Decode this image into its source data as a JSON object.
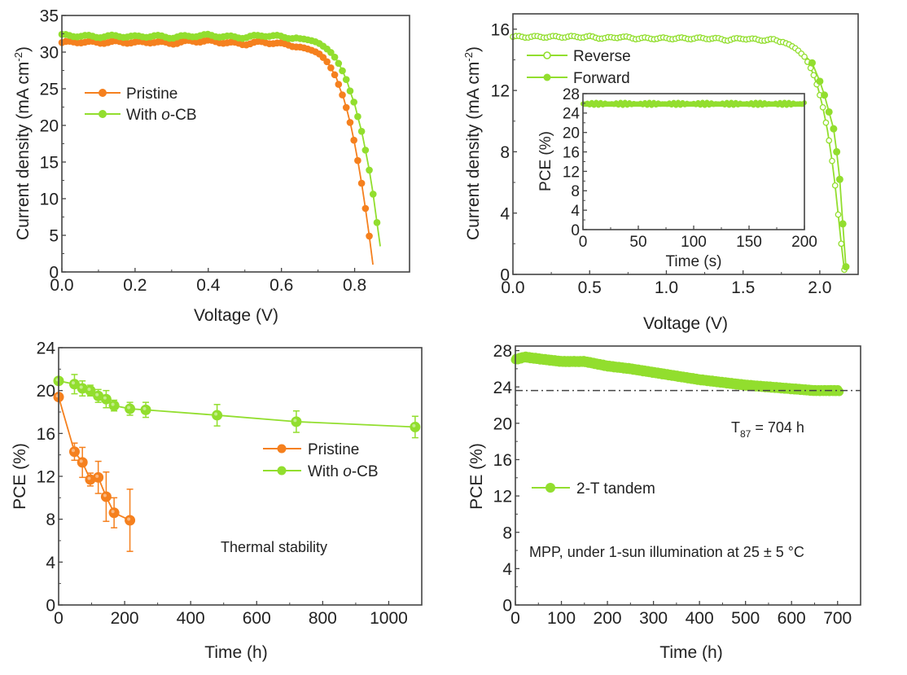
{
  "colors": {
    "pristine": "#f5801e",
    "ocb": "#92de2e",
    "ref_line": "#444444"
  },
  "chart_data": [
    {
      "id": "jv",
      "type": "line",
      "xlabel": "Voltage (V)",
      "ylabel": "Current density (mA cm",
      "ylabel_sup": "-2",
      "ylabel_end": ")",
      "xlim": [
        0,
        0.95
      ],
      "ylim": [
        0,
        35
      ],
      "xticks": [
        0.0,
        0.2,
        0.4,
        0.6,
        0.8
      ],
      "xtick_labels": [
        "0.0",
        "0.2",
        "0.4",
        "0.6",
        "0.8"
      ],
      "yticks": [
        0,
        5,
        10,
        15,
        20,
        25,
        30,
        35
      ],
      "ytick_labels": [
        "0",
        "5",
        "10",
        "15",
        "20",
        "25",
        "30",
        "35"
      ],
      "legend_position": "center-left",
      "series": [
        {
          "name": "Pristine",
          "color_key": "pristine",
          "x": [
            0.0,
            0.05,
            0.1,
            0.15,
            0.2,
            0.25,
            0.3,
            0.35,
            0.4,
            0.45,
            0.5,
            0.55,
            0.6,
            0.62,
            0.64,
            0.66,
            0.68,
            0.7,
            0.72,
            0.73,
            0.74,
            0.75,
            0.76,
            0.77,
            0.78,
            0.79,
            0.8,
            0.81,
            0.82,
            0.83,
            0.84,
            0.85
          ],
          "y": [
            31.3,
            31.4,
            31.3,
            31.4,
            31.3,
            31.4,
            31.2,
            31.5,
            31.5,
            31.3,
            31.1,
            31.4,
            31.1,
            31.0,
            30.8,
            30.6,
            30.3,
            29.9,
            29.0,
            28.3,
            27.4,
            26.5,
            25.0,
            23.7,
            21.9,
            19.9,
            17.5,
            14.8,
            11.8,
            8.5,
            4.9,
            1.0
          ]
        },
        {
          "name": "With o-CB",
          "color_key": "ocb",
          "x": [
            0.0,
            0.05,
            0.1,
            0.15,
            0.2,
            0.25,
            0.3,
            0.35,
            0.4,
            0.45,
            0.5,
            0.55,
            0.6,
            0.62,
            0.64,
            0.66,
            0.68,
            0.7,
            0.72,
            0.73,
            0.74,
            0.75,
            0.76,
            0.77,
            0.78,
            0.79,
            0.8,
            0.81,
            0.82,
            0.83,
            0.84,
            0.85,
            0.86,
            0.87
          ],
          "y": [
            32.3,
            32.2,
            32.1,
            32.2,
            32.1,
            32.2,
            32.0,
            32.2,
            32.3,
            32.1,
            32.0,
            32.3,
            32.1,
            32.0,
            31.9,
            31.8,
            31.6,
            31.3,
            30.6,
            30.2,
            29.7,
            29.0,
            28.1,
            27.1,
            25.9,
            24.3,
            22.9,
            20.9,
            19.0,
            16.5,
            13.9,
            10.8,
            7.1,
            3.5
          ]
        }
      ]
    },
    {
      "id": "tandem-jv",
      "type": "line",
      "xlabel": "Voltage (V)",
      "ylabel": "Current density (mA cm",
      "ylabel_sup": "-2",
      "ylabel_end": ")",
      "xlim": [
        0,
        2.25
      ],
      "ylim": [
        0,
        17
      ],
      "xticks": [
        0.0,
        0.5,
        1.0,
        1.5,
        2.0
      ],
      "xtick_labels": [
        "0.0",
        "0.5",
        "1.0",
        "1.5",
        "2.0"
      ],
      "yticks": [
        0,
        4,
        8,
        12,
        16
      ],
      "ytick_labels": [
        "0",
        "4",
        "8",
        "12",
        "16"
      ],
      "legend_position": "top-left",
      "series": [
        {
          "name": "Reverse",
          "marker": "open",
          "color_key": "ocb",
          "x": [
            0.0,
            0.1,
            0.2,
            0.3,
            0.4,
            0.5,
            0.6,
            0.7,
            0.8,
            0.9,
            1.0,
            1.1,
            1.2,
            1.3,
            1.4,
            1.5,
            1.6,
            1.7,
            1.75,
            1.8,
            1.85,
            1.9,
            1.93,
            1.96,
            1.99,
            2.02,
            2.05,
            2.08,
            2.1,
            2.12,
            2.14,
            2.16
          ],
          "y": [
            15.5,
            15.5,
            15.5,
            15.5,
            15.5,
            15.5,
            15.4,
            15.5,
            15.4,
            15.4,
            15.4,
            15.4,
            15.4,
            15.4,
            15.3,
            15.4,
            15.3,
            15.3,
            15.2,
            15.0,
            14.7,
            14.2,
            13.7,
            13.0,
            12.1,
            10.9,
            9.4,
            7.4,
            5.8,
            3.9,
            2.0,
            0.3
          ]
        },
        {
          "name": "Forward",
          "marker": "filled",
          "color_key": "ocb",
          "x": [
            0.0,
            0.2,
            0.4,
            0.6,
            0.8,
            1.0,
            1.2,
            1.4,
            1.6,
            1.75,
            1.85,
            1.95,
            2.0,
            2.03,
            2.06,
            2.09,
            2.11,
            2.13,
            2.15,
            2.17
          ],
          "y": [
            15.5,
            15.5,
            15.5,
            15.5,
            15.4,
            15.4,
            15.4,
            15.3,
            15.3,
            15.2,
            14.8,
            13.8,
            12.6,
            11.7,
            10.6,
            9.5,
            8.0,
            6.2,
            3.3,
            0.5
          ]
        }
      ],
      "inset": {
        "type": "line",
        "xlabel": "Time (s)",
        "ylabel": "PCE (%)",
        "xlim": [
          0,
          200
        ],
        "ylim": [
          0,
          28
        ],
        "xticks": [
          0,
          50,
          100,
          150,
          200
        ],
        "xtick_labels": [
          "0",
          "50",
          "100",
          "150",
          "200"
        ],
        "yticks": [
          0,
          4,
          8,
          12,
          16,
          20,
          24,
          28
        ],
        "ytick_labels": [
          "0",
          "4",
          "8",
          "12",
          "16",
          "20",
          "24",
          "28"
        ],
        "series": {
          "name": "PCE",
          "color_key": "ocb",
          "mean": 25.9,
          "range": [
            25.3,
            26.4
          ],
          "x_start": 0,
          "x_end": 200
        }
      }
    },
    {
      "id": "thermal",
      "type": "line",
      "xlabel": "Time (h)",
      "ylabel": "PCE (%)",
      "xlim": [
        0,
        1100
      ],
      "ylim": [
        0,
        24
      ],
      "xticks": [
        0,
        200,
        400,
        600,
        800,
        1000
      ],
      "xtick_labels": [
        "0",
        "200",
        "400",
        "600",
        "800",
        "1000"
      ],
      "yticks": [
        0,
        4,
        8,
        12,
        16,
        20,
        24
      ],
      "ytick_labels": [
        "0",
        "4",
        "8",
        "12",
        "16",
        "20",
        "24"
      ],
      "annotation": "Thermal stability",
      "legend_position": "right",
      "series": [
        {
          "name": "Pristine",
          "color_key": "pristine",
          "x": [
            0,
            48,
            72,
            96,
            120,
            144,
            168,
            216
          ],
          "y": [
            19.4,
            14.3,
            13.3,
            11.7,
            11.9,
            10.1,
            8.6,
            7.9
          ],
          "err": [
            0.3,
            0.8,
            1.4,
            0.6,
            1.5,
            2.3,
            1.4,
            2.9
          ]
        },
        {
          "name": "With o-CB",
          "color_key": "ocb",
          "x": [
            0,
            48,
            72,
            96,
            120,
            144,
            168,
            216,
            264,
            480,
            720,
            1080
          ],
          "y": [
            20.9,
            20.6,
            20.2,
            20.0,
            19.5,
            19.2,
            18.6,
            18.3,
            18.2,
            17.7,
            17.1,
            16.6
          ],
          "err": [
            0.2,
            0.9,
            0.7,
            0.5,
            0.6,
            0.8,
            0.5,
            0.6,
            0.7,
            1.0,
            1.0,
            1.0
          ]
        }
      ]
    },
    {
      "id": "mpp",
      "type": "line",
      "xlabel": "Time (h)",
      "ylabel": "PCE (%)",
      "xlim": [
        0,
        750
      ],
      "ylim": [
        0,
        28.5
      ],
      "xticks": [
        0,
        100,
        200,
        300,
        400,
        500,
        600,
        700
      ],
      "xtick_labels": [
        "0",
        "100",
        "200",
        "300",
        "400",
        "500",
        "600",
        "700"
      ],
      "yticks": [
        0,
        4,
        8,
        12,
        16,
        20,
        24,
        28
      ],
      "ytick_labels": [
        "0",
        "4",
        "8",
        "12",
        "16",
        "20",
        "24",
        "28"
      ],
      "reference_line": 23.6,
      "annotation_t87_main": "T",
      "annotation_t87_sub": "87",
      "annotation_t87_rest": " = 704 h",
      "annotation_condition": "MPP, under 1-sun illumination at 25 ± 5 °C",
      "legend_position": "center-left",
      "series": [
        {
          "name": "2-T tandem",
          "color_key": "ocb",
          "x": [
            0,
            20,
            50,
            100,
            150,
            200,
            250,
            300,
            350,
            400,
            450,
            500,
            550,
            600,
            650,
            700
          ],
          "y": [
            27.0,
            27.3,
            27.1,
            26.8,
            26.8,
            26.3,
            26.0,
            25.6,
            25.2,
            24.8,
            24.5,
            24.2,
            24.0,
            23.8,
            23.6,
            23.6
          ]
        }
      ]
    }
  ]
}
